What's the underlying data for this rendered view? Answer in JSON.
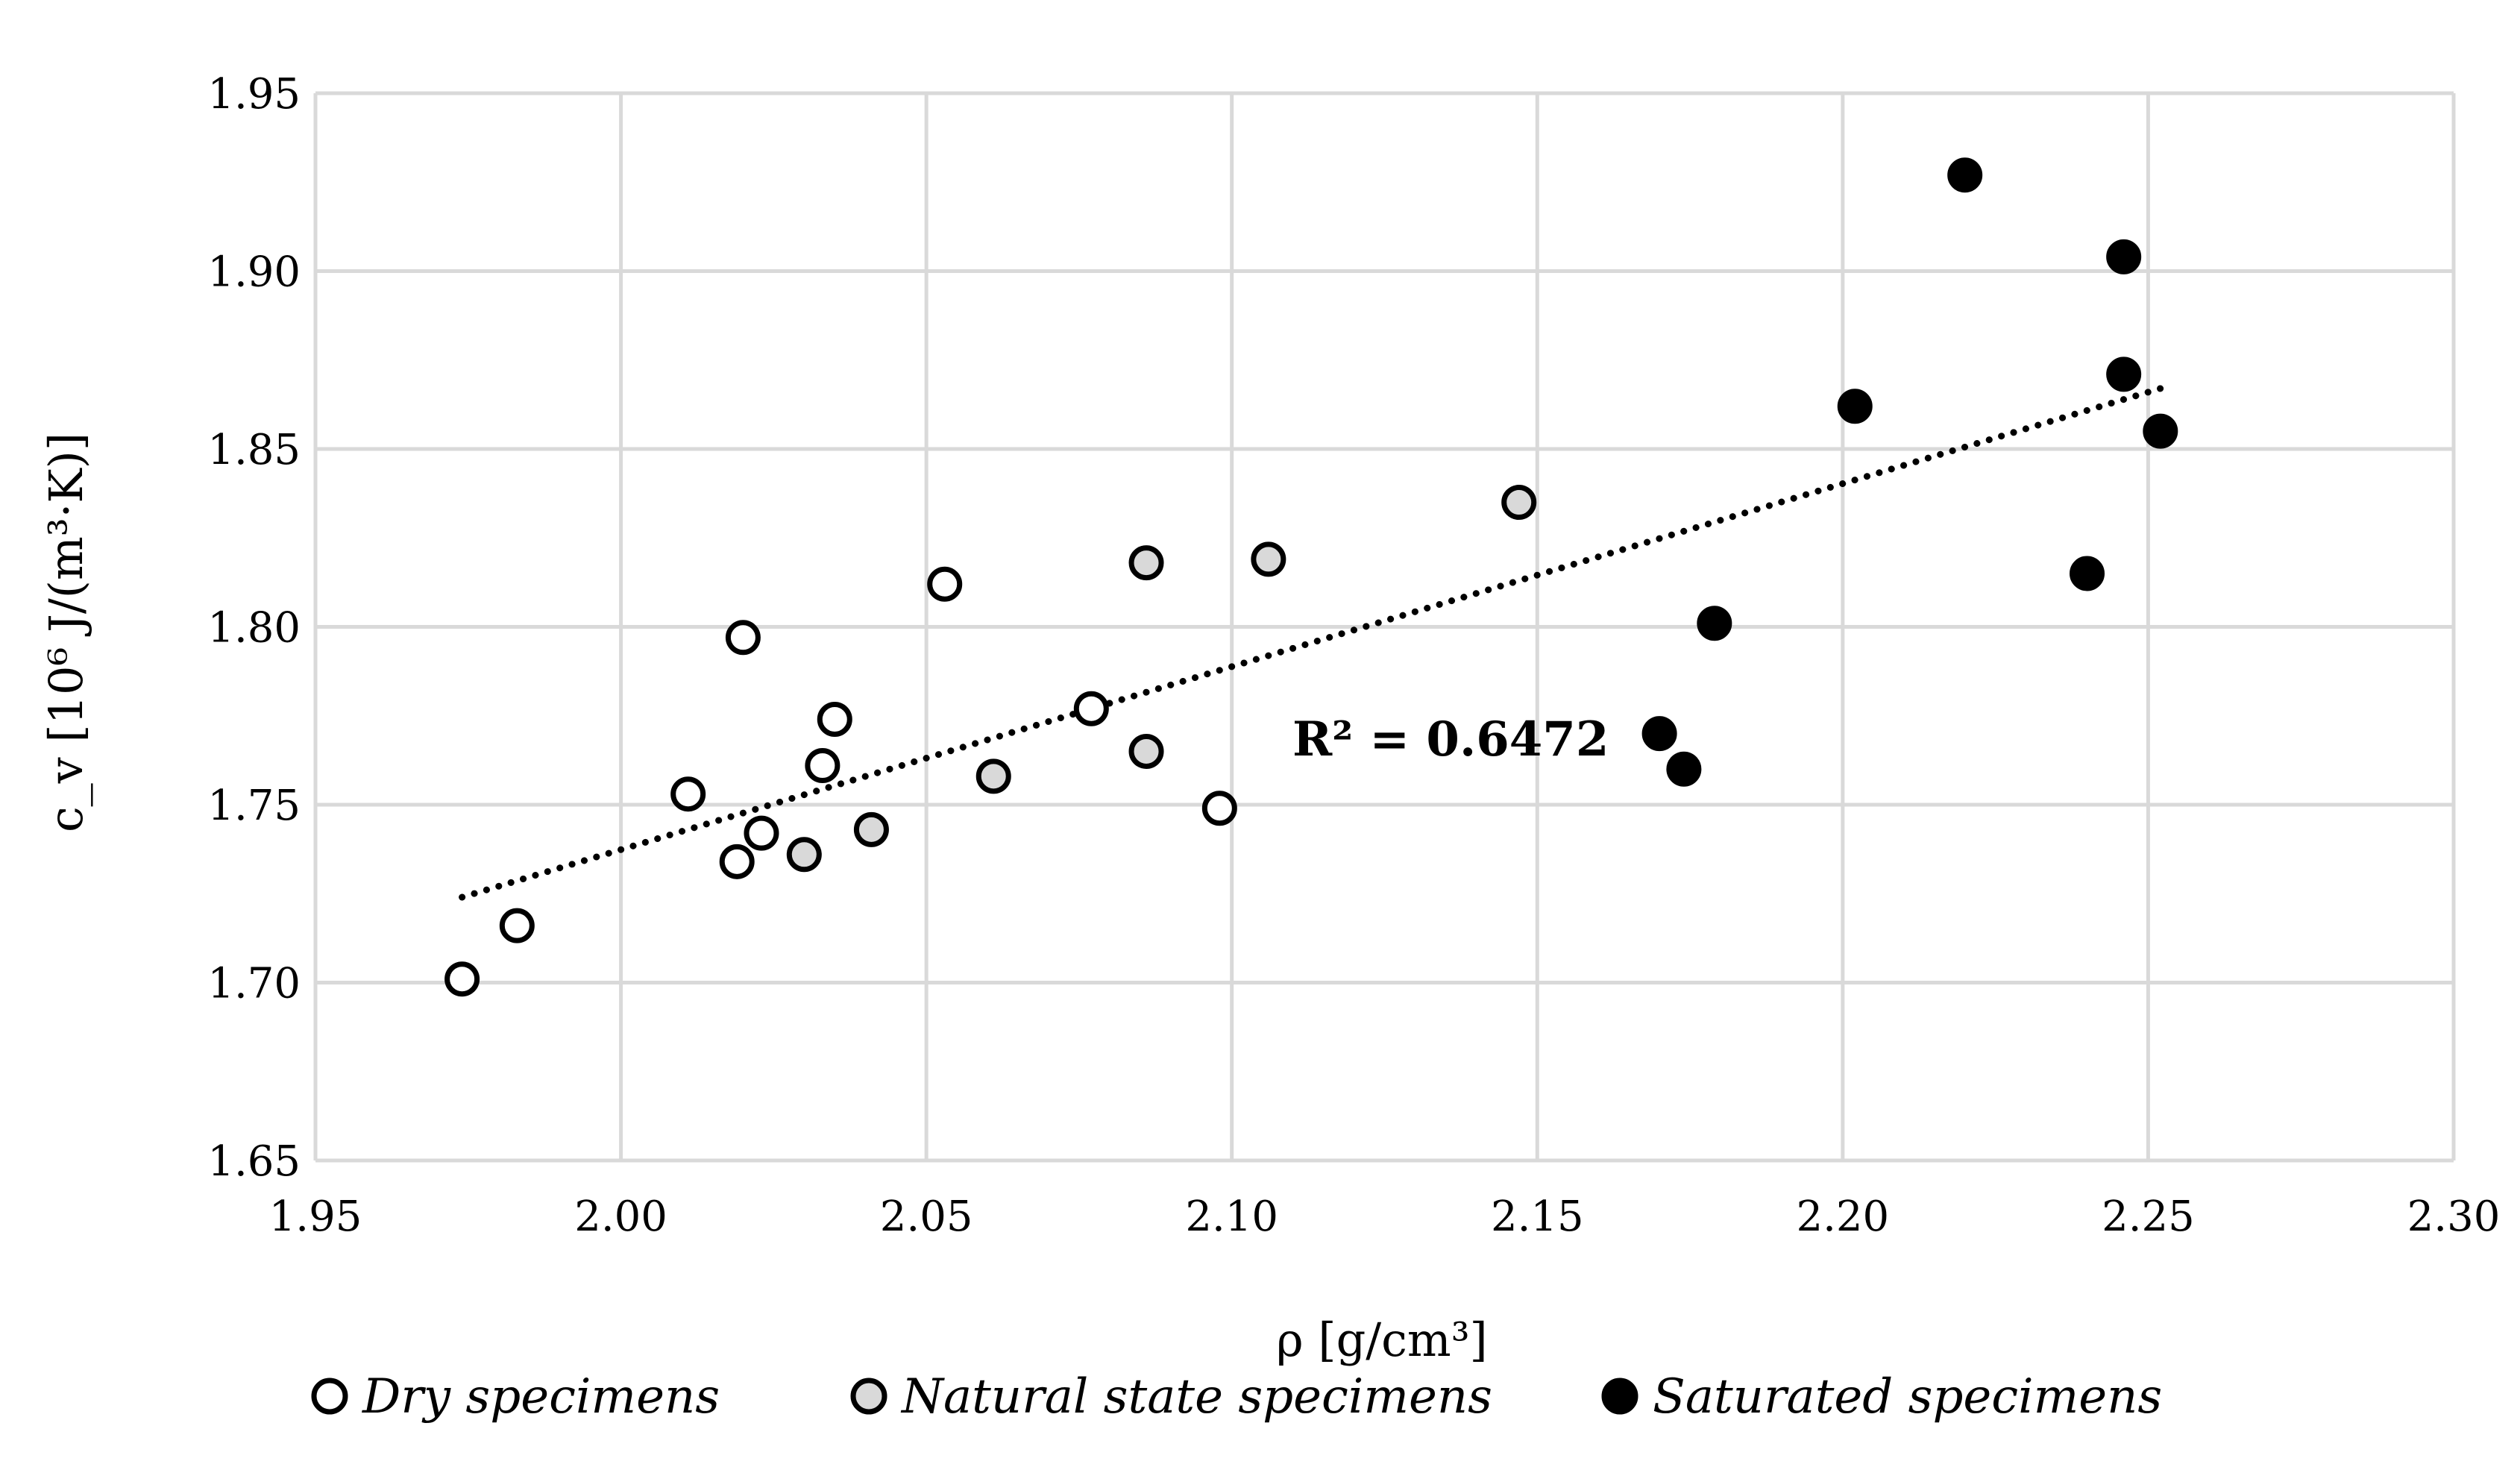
{
  "chart_data": {
    "type": "scatter",
    "title": "",
    "xlabel": "ρ [g/cm³]",
    "ylabel": "c_v [10⁶ J/(m³·K)]",
    "xlim": [
      1.95,
      2.3
    ],
    "ylim": [
      1.65,
      1.95
    ],
    "x_ticks": [
      "1.95",
      "2.00",
      "2.05",
      "2.10",
      "2.15",
      "2.20",
      "2.25",
      "2.30"
    ],
    "y_ticks": [
      "1.65",
      "1.70",
      "1.75",
      "1.80",
      "1.85",
      "1.90",
      "1.95"
    ],
    "grid": true,
    "legend_position": "bottom",
    "series": [
      {
        "name": "Dry specimens",
        "marker": "open-circle",
        "fill": "#ffffff",
        "points": [
          {
            "x": 1.974,
            "y": 1.701
          },
          {
            "x": 1.983,
            "y": 1.716
          },
          {
            "x": 2.011,
            "y": 1.753
          },
          {
            "x": 2.019,
            "y": 1.734
          },
          {
            "x": 2.02,
            "y": 1.797
          },
          {
            "x": 2.023,
            "y": 1.742
          },
          {
            "x": 2.033,
            "y": 1.761
          },
          {
            "x": 2.035,
            "y": 1.774
          },
          {
            "x": 2.053,
            "y": 1.812
          },
          {
            "x": 2.077,
            "y": 1.777
          },
          {
            "x": 2.098,
            "y": 1.749
          }
        ]
      },
      {
        "name": "Natural state specimens",
        "marker": "grey-circle",
        "fill": "#d9d9d9",
        "points": [
          {
            "x": 2.03,
            "y": 1.736
          },
          {
            "x": 2.041,
            "y": 1.743
          },
          {
            "x": 2.061,
            "y": 1.758
          },
          {
            "x": 2.086,
            "y": 1.765
          },
          {
            "x": 2.086,
            "y": 1.818
          },
          {
            "x": 2.106,
            "y": 1.819
          },
          {
            "x": 2.147,
            "y": 1.835
          }
        ]
      },
      {
        "name": "Saturated specimens",
        "marker": "filled-circle",
        "fill": "#000000",
        "points": [
          {
            "x": 2.17,
            "y": 1.77
          },
          {
            "x": 2.174,
            "y": 1.76
          },
          {
            "x": 2.179,
            "y": 1.801
          },
          {
            "x": 2.202,
            "y": 1.862
          },
          {
            "x": 2.22,
            "y": 1.927
          },
          {
            "x": 2.24,
            "y": 1.815
          },
          {
            "x": 2.246,
            "y": 1.904
          },
          {
            "x": 2.246,
            "y": 1.871
          },
          {
            "x": 2.252,
            "y": 1.855
          }
        ]
      }
    ],
    "trendline": {
      "type": "linear",
      "style": "dotted",
      "x_start": 1.974,
      "y_start": 1.724,
      "x_end": 2.252,
      "y_end": 1.867,
      "label": "R² = 0.6472"
    },
    "colors": {
      "grid": "#d9d9d9",
      "marker_stroke": "#000000",
      "trend": "#000000"
    }
  }
}
